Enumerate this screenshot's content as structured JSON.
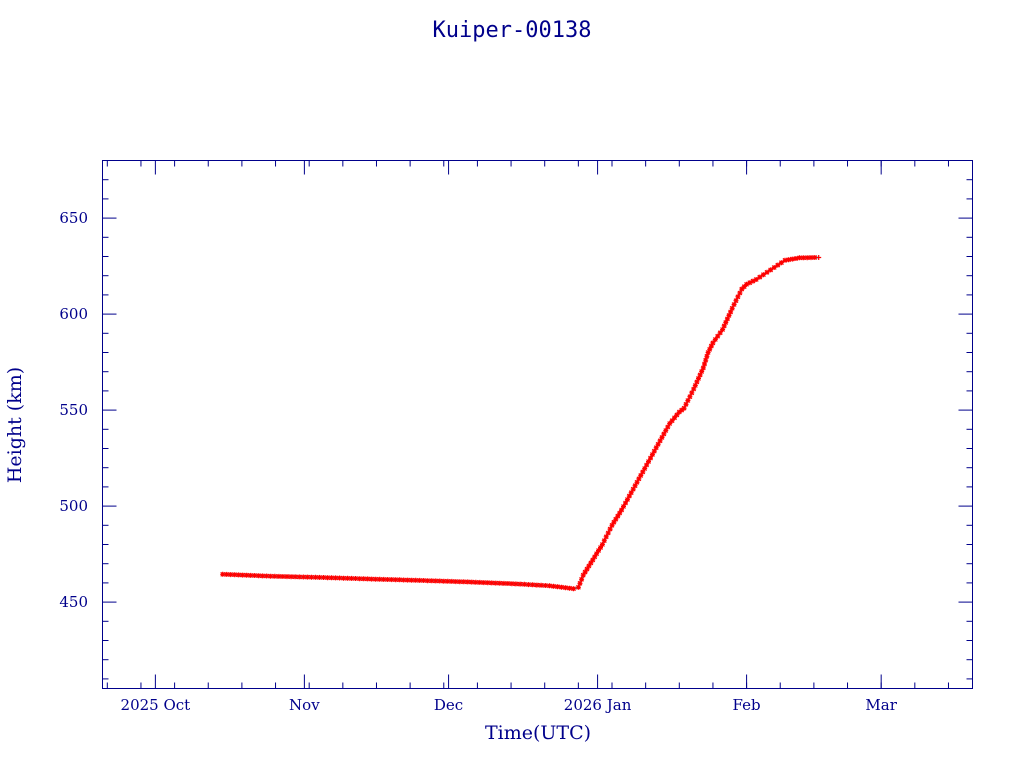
{
  "chart_data": {
    "type": "scatter",
    "title": "Kuiper-00138",
    "xlabel": "Time(UTC)",
    "ylabel": "Height (km)",
    "xlim": [
      "2025-09-20",
      "2026-03-20"
    ],
    "ylim": [
      405,
      680
    ],
    "x_ticks": [
      {
        "date": "2025-10-01",
        "label": "2025 Oct"
      },
      {
        "date": "2025-11-01",
        "label": "Nov"
      },
      {
        "date": "2025-12-01",
        "label": "Dec"
      },
      {
        "date": "2026-01-01",
        "label": "2026 Jan"
      },
      {
        "date": "2026-02-01",
        "label": "Feb"
      },
      {
        "date": "2026-03-01",
        "label": "Mar"
      }
    ],
    "y_ticks": [
      450,
      500,
      550,
      600,
      650
    ],
    "grid": false,
    "colors": {
      "frame": "#00008b",
      "markers": "#ff0000",
      "fit_line": "#00e5ee"
    },
    "series": [
      {
        "points": [
          {
            "x": "2025-10-15",
            "y": 464.5
          },
          {
            "x": "2025-10-25",
            "y": 463.5
          },
          {
            "x": "2025-11-05",
            "y": 462.8
          },
          {
            "x": "2025-11-15",
            "y": 462.0
          },
          {
            "x": "2025-11-25",
            "y": 461.3
          },
          {
            "x": "2025-12-05",
            "y": 460.5
          },
          {
            "x": "2025-12-15",
            "y": 459.5
          },
          {
            "x": "2025-12-22",
            "y": 458.5
          },
          {
            "x": "2025-12-28",
            "y": 457.7
          },
          {
            "x": "2025-12-27",
            "y": 457.0
          },
          {
            "x": "2025-12-29",
            "y": 464.0
          },
          {
            "x": "2025-12-31",
            "y": 472.0
          },
          {
            "x": "2026-01-02",
            "y": 480.0
          },
          {
            "x": "2026-01-04",
            "y": 490.0
          },
          {
            "x": "2026-01-06",
            "y": 498.0
          },
          {
            "x": "2026-01-08",
            "y": 507.0
          },
          {
            "x": "2026-01-10",
            "y": 516.0
          },
          {
            "x": "2026-01-12",
            "y": 525.0
          },
          {
            "x": "2026-01-14",
            "y": 534.0
          },
          {
            "x": "2026-01-16",
            "y": 543.0
          },
          {
            "x": "2026-01-18",
            "y": 549.0
          },
          {
            "x": "2026-01-19",
            "y": 551.0
          },
          {
            "x": "2026-01-21",
            "y": 561.0
          },
          {
            "x": "2026-01-23",
            "y": 572.0
          },
          {
            "x": "2026-01-24",
            "y": 580.0
          },
          {
            "x": "2026-01-25",
            "y": 585.0
          },
          {
            "x": "2026-01-27",
            "y": 592.0
          },
          {
            "x": "2026-01-29",
            "y": 603.0
          },
          {
            "x": "2026-01-31",
            "y": 613.0
          },
          {
            "x": "2026-02-01",
            "y": 615.5
          },
          {
            "x": "2026-02-03",
            "y": 618.0
          },
          {
            "x": "2026-02-06",
            "y": 623.0
          },
          {
            "x": "2026-02-09",
            "y": 628.0
          },
          {
            "x": "2026-02-12",
            "y": 629.3
          },
          {
            "x": "2026-02-16",
            "y": 629.5
          }
        ]
      }
    ]
  }
}
